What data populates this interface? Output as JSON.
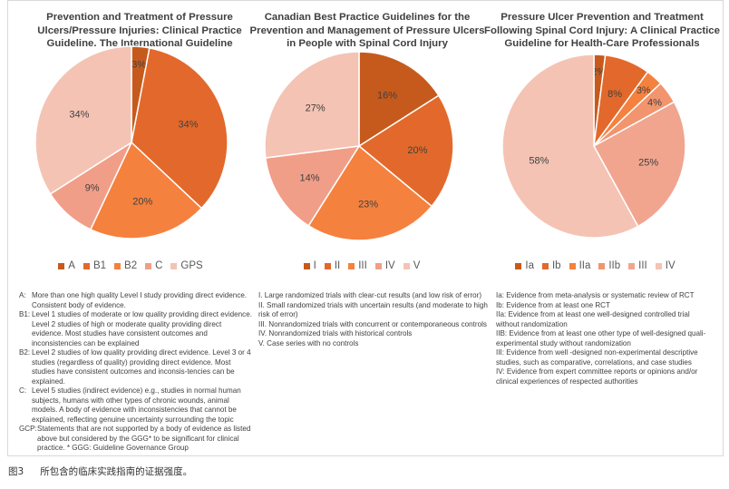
{
  "caption": {
    "figure_label": "图3",
    "text": "所包含的临床实践指南的证据强度。"
  },
  "chart_data": [
    {
      "type": "pie",
      "title": "Prevention and Treatment of Pressure\nUlcers/Pressure Injuries: Clinical Practice\nGuideline. The International Guideline",
      "categories": [
        "A",
        "B1",
        "B2",
        "C",
        "GPS"
      ],
      "values": [
        3,
        34,
        20,
        9,
        34
      ],
      "labels": [
        "3%",
        "34%",
        "20%",
        "9%",
        "34%"
      ],
      "colors": [
        "#c65a1c",
        "#e2692b",
        "#f5813e",
        "#f19e88",
        "#f4c3b4"
      ],
      "legend": "bottom"
    },
    {
      "type": "pie",
      "title": "Canadian Best Practice Guidelines for the\nPrevention and Management of Pressure Ulcers\nin People with Spinal Cord Injury",
      "categories": [
        "I",
        "II",
        "III",
        "IV",
        "V"
      ],
      "values": [
        16,
        20,
        23,
        14,
        27
      ],
      "labels": [
        "16%",
        "20%",
        "23%",
        "14%",
        "27%"
      ],
      "colors": [
        "#c65a1c",
        "#e2692b",
        "#f5813e",
        "#f19e88",
        "#f4c3b4"
      ],
      "legend": "bottom"
    },
    {
      "type": "pie",
      "title": "Pressure Ulcer Prevention and Treatment\nFollowing Spinal Cord Injury: A Clinical Practice\nGuideline for Health-Care Professionals",
      "categories": [
        "Ia",
        "Ib",
        "IIa",
        "IIb",
        "III",
        "IV"
      ],
      "values": [
        2,
        8,
        3,
        4,
        25,
        58
      ],
      "labels": [
        "2%",
        "8%",
        "3%",
        "4%",
        "25%",
        "58%"
      ],
      "colors": [
        "#c65a1c",
        "#e2692b",
        "#f5813e",
        "#f2956e",
        "#f1a58f",
        "#f4c3b4"
      ],
      "legend": "bottom"
    }
  ],
  "notes": {
    "panel1": [
      {
        "key": "A:",
        "text": "More than one high quality Level I study providing direct evidence. Consistent body of evidence."
      },
      {
        "key": "B1:",
        "text": "Level 1 studies of moderate or low quality providing direct evidence.  Level 2 studies of high or moderate quality providing direct evidence.  Most studies have consistent outcomes and inconsistencies can be explained"
      },
      {
        "key": "B2:",
        "text": "Level 2 studies of low quality providing direct evidence. Level 3 or 4 studies (regardless of quality) providing direct evidence. Most studies have consistent outcomes and inconsis-tencies can be explained."
      },
      {
        "key": "C:",
        "text": "Level 5 studies (indirect evidence) e.g., studies in normal human subjects, humans with other types of chronic wounds, animal models. A body of evidence with inconsistencies that cannot be explained, reflecting genuine uncertainty surrounding the topic"
      },
      {
        "key": "GCP:",
        "text": "Statements that are not supported by a body of evidence as listed above but considered by the GGG* to be significant for clinical practice.          * GGG: Guideline Governance Group"
      }
    ],
    "panel2": [
      "I.  Large randomized trials with clear-cut results (and low risk of error)",
      "II. Small randomized trials with uncertain results (and moderate to high risk of error)",
      "III. Nonrandomized trials with concurrent or contemporaneous controls",
      "IV. Nonrandomized trials with historical controls",
      "V.  Case series with no controls"
    ],
    "panel3": [
      "Ia: Evidence from meta-analysis or systematic review of RCT",
      "Ib: Evidence from at least one RCT",
      "IIa: Evidence from at least one well-designed controlled trial without randomization",
      "IIB: Evidence from at least one other type of well-designed quali-experimental study without randomization",
      "III: Evidence from well -designed non-experimental descriptive studies, such as comparative, correlations, and case studies",
      "IV: Evidence from expert committee reports or opinions and/or clinical experiences of respected authorities"
    ]
  }
}
